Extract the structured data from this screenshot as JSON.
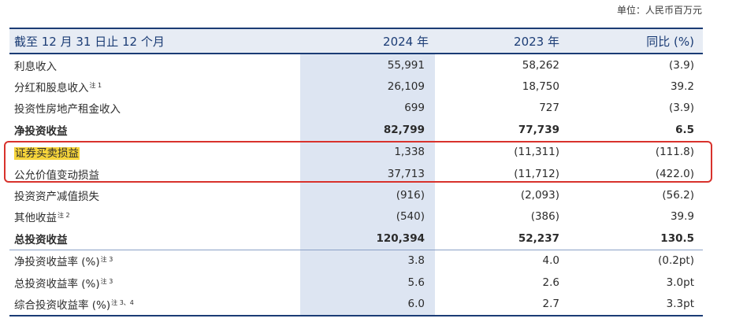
{
  "unit_note": "单位：人民币百万元",
  "header": {
    "label": "截至 12 月 31 日止 12 个月",
    "col_2024": "2024 年",
    "col_2023": "2023 年",
    "col_yoy": "同比 (%)"
  },
  "rows": [
    {
      "label": "利息收入",
      "note": "",
      "v2024": "55,991",
      "v2023": "58,262",
      "yoy": "(3.9)"
    },
    {
      "label": "分红和股息收入",
      "note": "注 1",
      "v2024": "26,109",
      "v2023": "18,750",
      "yoy": "39.2"
    },
    {
      "label": "投资性房地产租金收入",
      "note": "",
      "v2024": "699",
      "v2023": "727",
      "yoy": "(3.9)"
    },
    {
      "label": "净投资收益",
      "note": "",
      "v2024": "82,799",
      "v2023": "77,739",
      "yoy": "6.5"
    },
    {
      "label": "证券买卖损益",
      "note": "",
      "v2024": "1,338",
      "v2023": "(11,311)",
      "yoy": "(111.8)"
    },
    {
      "label": "公允价值变动损益",
      "note": "",
      "v2024": "37,713",
      "v2023": "(11,712)",
      "yoy": "(422.0)"
    },
    {
      "label": "投资资产减值损失",
      "note": "",
      "v2024": "(916)",
      "v2023": "(2,093)",
      "yoy": "(56.2)"
    },
    {
      "label": "其他收益",
      "note": "注 2",
      "v2024": "(540)",
      "v2023": "(386)",
      "yoy": "39.9"
    },
    {
      "label": "总投资收益",
      "note": "",
      "v2024": "120,394",
      "v2023": "52,237",
      "yoy": "130.5"
    },
    {
      "label": "净投资收益率 (%)",
      "note": "注 3",
      "v2024": "3.8",
      "v2023": "4.0",
      "yoy": "(0.2pt)"
    },
    {
      "label": "总投资收益率 (%)",
      "note": "注 3",
      "v2024": "5.6",
      "v2023": "2.6",
      "yoy": "3.0pt"
    },
    {
      "label": "综合投资收益率 (%)",
      "note": "注 3、4",
      "v2024": "6.0",
      "v2023": "2.7",
      "yoy": "3.3pt"
    }
  ],
  "colors": {
    "header_text": "#1b3c75",
    "highlight_column": "#dde5f2",
    "highlight_marker": "#f6d43a",
    "annotation_box": "#d8322c"
  }
}
